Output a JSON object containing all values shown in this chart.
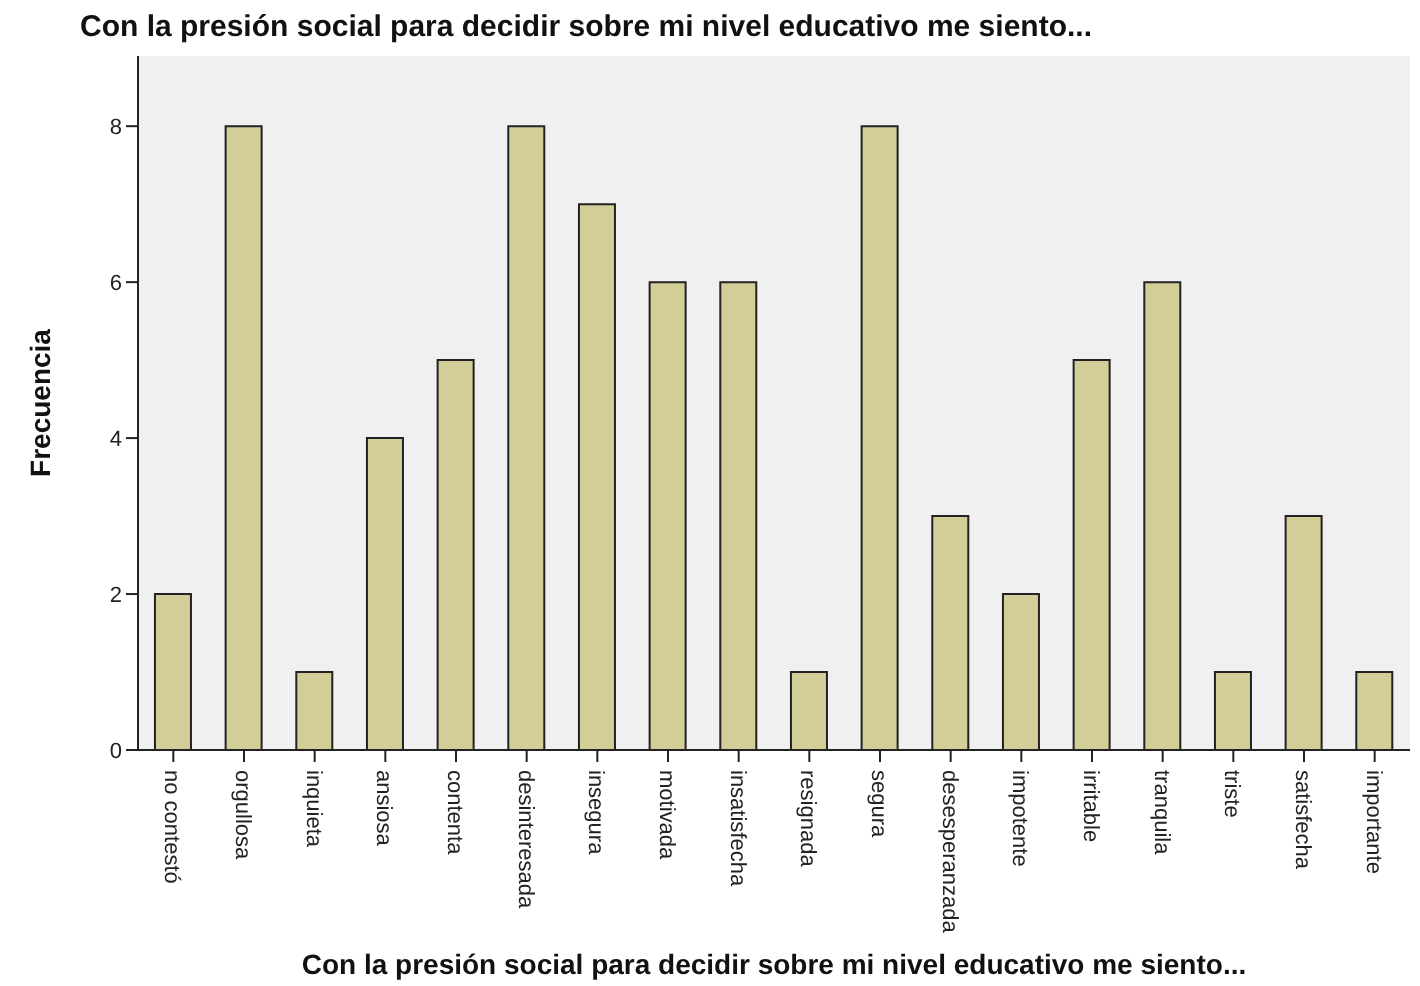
{
  "chart_data": {
    "type": "bar",
    "title": "Con la presión social para decidir sobre mi nivel educativo me siento...",
    "xlabel": "Con la presión social para decidir sobre mi nivel educativo me siento...",
    "ylabel": "Frecuencia",
    "categories": [
      "no contestó",
      "orgullosa",
      "inquieta",
      "ansiosa",
      "contenta",
      "desinteresada",
      "insegura",
      "motivada",
      "insatisfecha",
      "resignada",
      "segura",
      "desesperanzada",
      "impotente",
      "irritable",
      "tranquila",
      "triste",
      "satisfecha",
      "importante"
    ],
    "values": [
      2,
      8,
      1,
      4,
      5,
      8,
      7,
      6,
      6,
      1,
      8,
      3,
      2,
      5,
      6,
      1,
      3,
      1
    ],
    "color": "#d3ce97",
    "ylim": [
      0,
      8.9
    ],
    "yticks": [
      0,
      2,
      4,
      6,
      8
    ],
    "grid": false,
    "legend": false
  }
}
